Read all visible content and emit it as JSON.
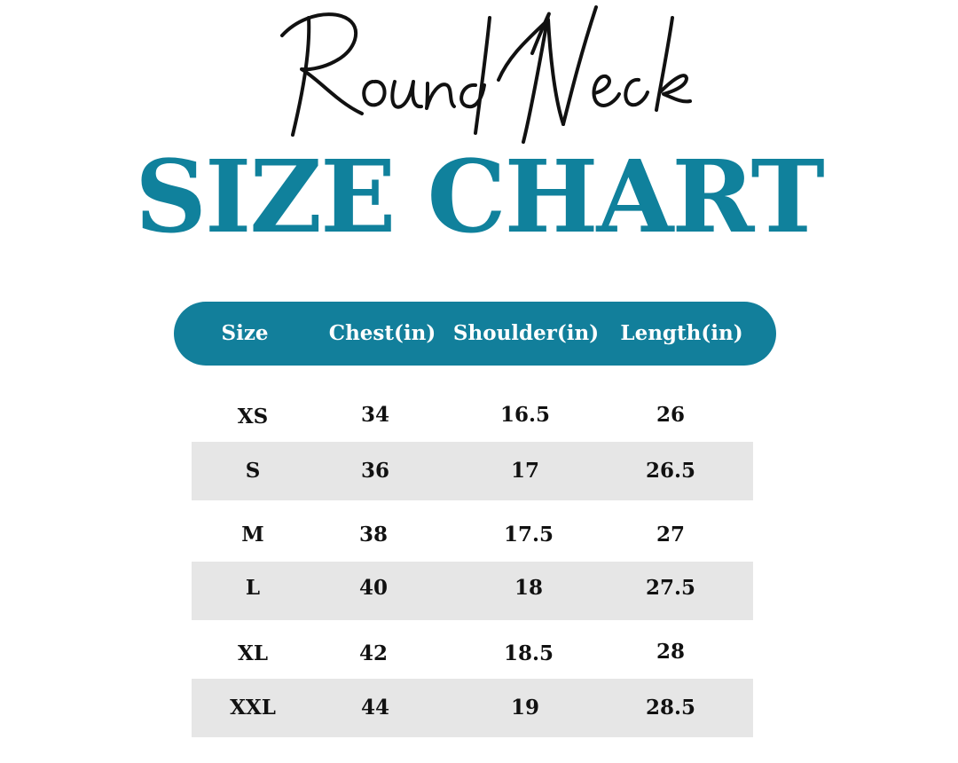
{
  "script_title": "Round Neck",
  "title": "SIZE CHART",
  "colors": {
    "accent": "#127f9b",
    "row_shade": "#e6e6e6",
    "text": "#111111"
  },
  "table": {
    "headers": [
      "Size",
      "Chest(in)",
      "Shoulder(in)",
      "Length(in)"
    ],
    "rows": [
      [
        "XS",
        "34",
        "16.5",
        "26"
      ],
      [
        "S",
        "36",
        "17",
        "26.5"
      ],
      [
        "M",
        "38",
        "17.5",
        "27"
      ],
      [
        "L",
        "40",
        "18",
        "27.5"
      ],
      [
        "XL",
        "42",
        "18.5",
        "28"
      ],
      [
        "XXL",
        "44",
        "19",
        "28.5"
      ]
    ]
  }
}
